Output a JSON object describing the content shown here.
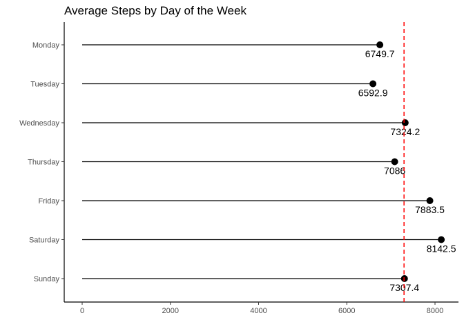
{
  "chart_data": {
    "type": "lollipop",
    "title": "Average Steps by Day of the Week",
    "xlabel": "",
    "ylabel": "",
    "categories": [
      "Monday",
      "Tuesday",
      "Wednesday",
      "Thursday",
      "Friday",
      "Saturday",
      "Sunday"
    ],
    "values": [
      6749.7,
      6592.9,
      7324.2,
      7086,
      7883.5,
      8142.5,
      7307.4
    ],
    "value_labels": [
      "6749.7",
      "6592.9",
      "7324.2",
      "7086",
      "7883.5",
      "8142.5",
      "7307.4"
    ],
    "x_ticks": [
      0,
      2000,
      4000,
      6000,
      8000
    ],
    "x_tick_labels": [
      "0",
      "2000",
      "4000",
      "6000",
      "8000"
    ],
    "xlim": [
      -400,
      8550
    ],
    "reference_line": {
      "value": 7298,
      "style": "dashed",
      "color": "#ff0000"
    },
    "colors": {
      "stem": "#000000",
      "point": "#000000",
      "axis": "#000000"
    },
    "grid": false,
    "legend": "none"
  }
}
